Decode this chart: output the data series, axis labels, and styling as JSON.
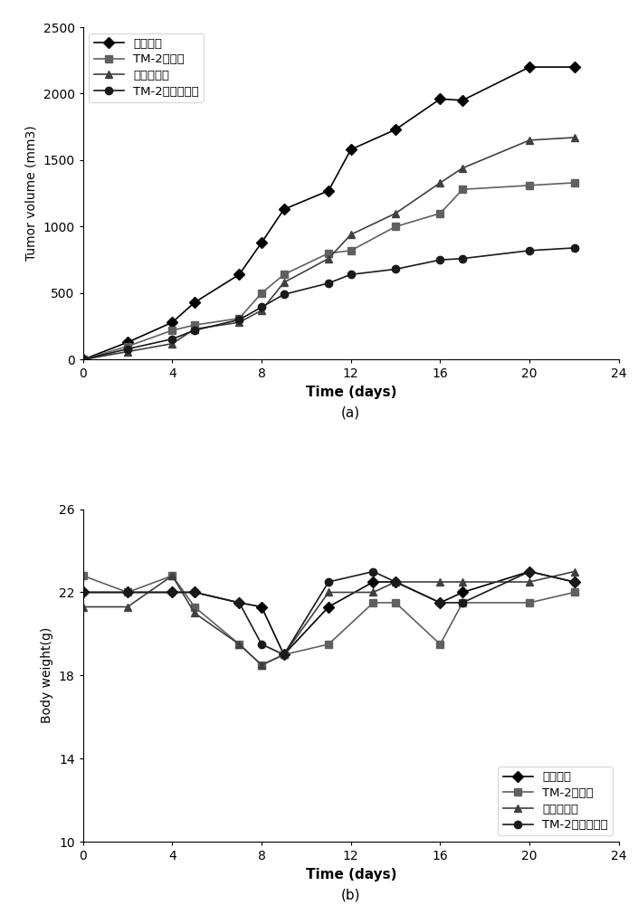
{
  "chart_a": {
    "title": "(a)",
    "xlabel": "Time (days)",
    "ylabel": "Tumor volume (mm3)",
    "xlim": [
      0,
      24
    ],
    "ylim": [
      0,
      2500
    ],
    "xticks": [
      0,
      4,
      8,
      12,
      16,
      20,
      24
    ],
    "yticks": [
      0,
      500,
      1000,
      1500,
      2000,
      2500
    ],
    "series": {
      "空白对照": {
        "x": [
          0,
          2,
          4,
          5,
          7,
          8,
          9,
          11,
          12,
          14,
          16,
          17,
          20,
          22
        ],
        "y": [
          0,
          130,
          280,
          430,
          640,
          880,
          1130,
          1270,
          1580,
          1730,
          1960,
          1950,
          2200,
          2200
        ],
        "color": "#000000",
        "marker": "D",
        "linestyle": "-"
      },
      "TM-2溶液组": {
        "x": [
          0,
          2,
          4,
          5,
          7,
          8,
          9,
          11,
          12,
          14,
          16,
          17,
          20,
          22
        ],
        "y": [
          0,
          100,
          220,
          260,
          310,
          500,
          640,
          800,
          820,
          1000,
          1100,
          1280,
          1310,
          1330
        ],
        "color": "#606060",
        "marker": "s",
        "linestyle": "-"
      },
      "阳性对照组": {
        "x": [
          0,
          2,
          4,
          5,
          7,
          8,
          9,
          11,
          12,
          14,
          16,
          17,
          20,
          22
        ],
        "y": [
          0,
          60,
          120,
          230,
          280,
          370,
          580,
          760,
          940,
          1100,
          1330,
          1440,
          1650,
          1670
        ],
        "color": "#404040",
        "marker": "^",
        "linestyle": "-"
      },
      "TM-2脂质微球组": {
        "x": [
          0,
          2,
          4,
          5,
          7,
          8,
          9,
          11,
          12,
          14,
          16,
          17,
          20,
          22
        ],
        "y": [
          0,
          80,
          155,
          220,
          300,
          395,
          490,
          575,
          640,
          680,
          750,
          760,
          820,
          840
        ],
        "color": "#1a1a1a",
        "marker": "o",
        "linestyle": "-"
      }
    },
    "legend_order": [
      "空白对照",
      "TM-2溶液组",
      "阳性对照组",
      "TM-2脂质微球组"
    ],
    "legend_loc": "upper left"
  },
  "chart_b": {
    "title": "(b)",
    "xlabel": "Time (days)",
    "ylabel": "Body weight(g)",
    "xlim": [
      0,
      24
    ],
    "ylim": [
      10,
      26
    ],
    "xticks": [
      0,
      4,
      8,
      12,
      16,
      20,
      24
    ],
    "yticks": [
      10,
      14,
      18,
      22,
      26
    ],
    "series": {
      "空白对照": {
        "x": [
          0,
          2,
          4,
          5,
          7,
          8,
          9,
          11,
          13,
          14,
          16,
          17,
          20,
          22
        ],
        "y": [
          22.0,
          22.0,
          22.0,
          22.0,
          21.5,
          21.3,
          19.0,
          21.3,
          22.5,
          22.5,
          21.5,
          22.0,
          23.0,
          22.5
        ],
        "color": "#000000",
        "marker": "D",
        "linestyle": "-"
      },
      "TM-2溶液组": {
        "x": [
          0,
          2,
          4,
          5,
          7,
          8,
          9,
          11,
          13,
          14,
          16,
          17,
          20,
          22
        ],
        "y": [
          22.8,
          22.0,
          22.8,
          21.3,
          19.5,
          18.5,
          19.0,
          19.5,
          21.5,
          21.5,
          19.5,
          21.5,
          21.5,
          22.0
        ],
        "color": "#606060",
        "marker": "s",
        "linestyle": "-"
      },
      "阳性对照组": {
        "x": [
          0,
          2,
          4,
          5,
          7,
          8,
          9,
          11,
          13,
          14,
          16,
          17,
          20,
          22
        ],
        "y": [
          21.3,
          21.3,
          22.8,
          21.0,
          19.5,
          18.5,
          19.0,
          22.0,
          22.0,
          22.5,
          22.5,
          22.5,
          22.5,
          23.0
        ],
        "color": "#404040",
        "marker": "^",
        "linestyle": "-"
      },
      "TM-2脂质微球组": {
        "x": [
          0,
          2,
          4,
          5,
          7,
          8,
          9,
          11,
          13,
          14,
          16,
          17,
          20,
          22
        ],
        "y": [
          22.0,
          22.0,
          22.0,
          22.0,
          21.5,
          19.5,
          19.0,
          22.5,
          23.0,
          22.5,
          21.5,
          21.5,
          23.0,
          22.5
        ],
        "color": "#1a1a1a",
        "marker": "o",
        "linestyle": "-"
      }
    },
    "legend_order": [
      "空白对照",
      "TM-2溶液组",
      "阳性对照组",
      "TM-2脂质微球组"
    ],
    "legend_loc": "lower right"
  }
}
